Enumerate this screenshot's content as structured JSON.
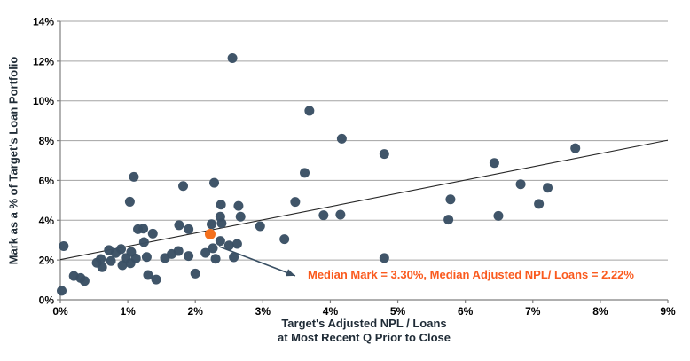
{
  "chart_data": {
    "type": "scatter",
    "ylabel": "Mark as a % of Target's Loan Portfolio",
    "xlabel_line1": "Target's Adjusted NPL / Loans",
    "xlabel_line2": "at Most Recent Q Prior to Close",
    "xlim": [
      0,
      9
    ],
    "ylim": [
      0,
      14
    ],
    "xtick_values": [
      0,
      1,
      2,
      3,
      4,
      5,
      6,
      7,
      8,
      9
    ],
    "xtick_labels": [
      "0%",
      "1%",
      "2%",
      "3%",
      "4%",
      "5%",
      "6%",
      "7%",
      "8%",
      "9%"
    ],
    "ytick_values": [
      0,
      2,
      4,
      6,
      8,
      10,
      12,
      14
    ],
    "ytick_labels": [
      "0%",
      "2%",
      "4%",
      "6%",
      "8%",
      "10%",
      "12%",
      "14%"
    ],
    "grid": true,
    "legend": "none",
    "points": [
      [
        0.02,
        0.45
      ],
      [
        0.05,
        2.7
      ],
      [
        0.2,
        1.2
      ],
      [
        0.3,
        1.1
      ],
      [
        0.36,
        0.95
      ],
      [
        0.54,
        1.86
      ],
      [
        0.62,
        1.64
      ],
      [
        0.92,
        1.74
      ],
      [
        1.04,
        1.84
      ],
      [
        0.6,
        2.05
      ],
      [
        0.72,
        2.5
      ],
      [
        0.82,
        2.35
      ],
      [
        0.9,
        2.55
      ],
      [
        1.05,
        2.4
      ],
      [
        0.75,
        1.95
      ],
      [
        0.97,
        2.1
      ],
      [
        1.12,
        2.08
      ],
      [
        1.28,
        2.15
      ],
      [
        1.24,
        2.9
      ],
      [
        1.15,
        3.55
      ],
      [
        1.23,
        3.58
      ],
      [
        1.37,
        3.33
      ],
      [
        1.3,
        1.25
      ],
      [
        1.42,
        1.02
      ],
      [
        1.55,
        2.1
      ],
      [
        1.65,
        2.3
      ],
      [
        1.75,
        2.45
      ],
      [
        1.9,
        2.2
      ],
      [
        1.03,
        4.93
      ],
      [
        1.09,
        6.18
      ],
      [
        1.82,
        5.72
      ],
      [
        2.28,
        5.88
      ],
      [
        1.76,
        3.75
      ],
      [
        1.9,
        3.55
      ],
      [
        2.24,
        3.8
      ],
      [
        2.39,
        3.85
      ],
      [
        2.37,
        4.18
      ],
      [
        2.67,
        4.18
      ],
      [
        2.38,
        4.78
      ],
      [
        2.64,
        4.72
      ],
      [
        2.15,
        2.36
      ],
      [
        2.26,
        2.59
      ],
      [
        2.3,
        2.06
      ],
      [
        2.57,
        2.14
      ],
      [
        2.37,
        2.96
      ],
      [
        2.5,
        2.73
      ],
      [
        2.62,
        2.81
      ],
      [
        2.0,
        1.32
      ],
      [
        2.55,
        12.15
      ],
      [
        2.96,
        3.7
      ],
      [
        3.32,
        3.05
      ],
      [
        3.48,
        4.92
      ],
      [
        3.62,
        6.38
      ],
      [
        3.69,
        9.5
      ],
      [
        3.9,
        4.25
      ],
      [
        4.15,
        4.28
      ],
      [
        4.17,
        8.1
      ],
      [
        4.8,
        7.33
      ],
      [
        4.8,
        2.1
      ],
      [
        5.78,
        5.05
      ],
      [
        5.75,
        4.03
      ],
      [
        6.43,
        6.88
      ],
      [
        6.49,
        4.22
      ],
      [
        6.82,
        5.81
      ],
      [
        7.09,
        4.82
      ],
      [
        7.22,
        5.63
      ],
      [
        7.63,
        7.62
      ]
    ],
    "median_point": {
      "x": 2.22,
      "y": 3.3
    },
    "median_mark_label": "3.30%",
    "median_npl_label": "2.22%",
    "trendline": {
      "x1": 0,
      "y1": 2.02,
      "x2": 9,
      "y2": 8.02
    },
    "annotation": {
      "text": "Median Mark = 3.30%, Median Adjusted NPL/ Loans = 2.22%",
      "arrow_from": {
        "x": 2.35,
        "y": 2.68
      },
      "arrow_to": {
        "x": 3.48,
        "y": 1.21
      }
    },
    "colors": {
      "point": "#3a5064",
      "median_point": "#f4701d",
      "annotation_text": "#fa5a1e",
      "gridline": "#a3a3a3",
      "axis": "#7f7f7f",
      "trendline": "#262626",
      "tick_text": "#000000",
      "axis_title": "#1f2b36",
      "arrow": "#3a5064"
    }
  }
}
